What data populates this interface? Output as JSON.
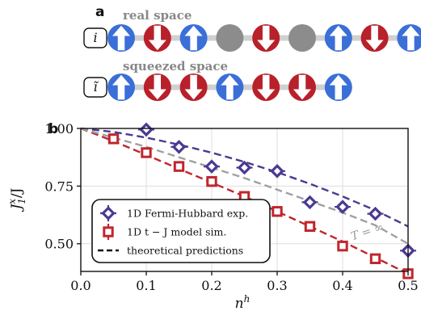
{
  "panel_a": {
    "letter": "a",
    "real_space": {
      "title": "real space",
      "index_label": "i",
      "sites": [
        "up",
        "down",
        "up",
        "hole",
        "down",
        "hole",
        "up",
        "down",
        "up"
      ]
    },
    "squeezed_space": {
      "title": "squeezed space",
      "index_label": "ĩ",
      "sites": [
        "up",
        "down",
        "down",
        "up",
        "down",
        "down",
        "up"
      ]
    },
    "colors": {
      "up": "#3b6fd8",
      "down": "#b8202a",
      "hole": "#8c8c8c",
      "bond": "#d0d0d0"
    }
  },
  "chart_data": {
    "type": "line",
    "panel_letter": "b",
    "xlabel": "n",
    "xlabel_sup": "h",
    "ylabel": "J",
    "ylabel_sup": "x",
    "ylabel_sub": "1",
    "ylabel_tail": "/J",
    "xlim": [
      0.0,
      0.5
    ],
    "ylim": [
      0.38,
      1.0
    ],
    "xticks": [
      0.0,
      0.1,
      0.2,
      0.3,
      0.4,
      0.5
    ],
    "xtick_labels": [
      "0.0",
      "0.1",
      "0.2",
      "0.3",
      "0.4",
      "0.5"
    ],
    "yticks": [
      0.5,
      0.75,
      1.0
    ],
    "ytick_labels": [
      "0.50",
      "0.75",
      "1.00"
    ],
    "grid": true,
    "annotation": "T = ∞",
    "series": [
      {
        "name": "1D Fermi-Hubbard exp.",
        "marker": "diamond",
        "color": "#4b3a91",
        "x": [
          0.1,
          0.15,
          0.2,
          0.25,
          0.3,
          0.35,
          0.4,
          0.45,
          0.5
        ],
        "y": [
          0.995,
          0.92,
          0.835,
          0.83,
          0.815,
          0.68,
          0.66,
          0.63,
          0.47
        ],
        "yerr": [
          0.02,
          0.015,
          0.015,
          0.012,
          0.015,
          0.012,
          0.012,
          0.015,
          0.015
        ]
      },
      {
        "name": "1D t − J model sim.",
        "marker": "square",
        "color": "#c0262d",
        "x": [
          0.05,
          0.1,
          0.15,
          0.2,
          0.25,
          0.3,
          0.35,
          0.4,
          0.45,
          0.5
        ],
        "y": [
          0.955,
          0.895,
          0.835,
          0.77,
          0.705,
          0.64,
          0.575,
          0.49,
          0.435,
          0.37
        ]
      }
    ],
    "curves": [
      {
        "color": "#4b3a91",
        "x": [
          0.0,
          0.05,
          0.1,
          0.15,
          0.2,
          0.25,
          0.3,
          0.35,
          0.4,
          0.45,
          0.5
        ],
        "y": [
          1.0,
          0.985,
          0.96,
          0.93,
          0.895,
          0.855,
          0.81,
          0.76,
          0.705,
          0.645,
          0.575
        ]
      },
      {
        "color": "#c0262d",
        "x": [
          0.0,
          0.05,
          0.1,
          0.15,
          0.2,
          0.25,
          0.3,
          0.35,
          0.4,
          0.45,
          0.5
        ],
        "y": [
          1.0,
          0.945,
          0.885,
          0.825,
          0.765,
          0.705,
          0.64,
          0.575,
          0.51,
          0.44,
          0.37
        ]
      },
      {
        "color": "#a0a0a0",
        "x": [
          0.0,
          0.05,
          0.1,
          0.15,
          0.2,
          0.25,
          0.3,
          0.35,
          0.4,
          0.45,
          0.5
        ],
        "y": [
          1.0,
          0.96,
          0.92,
          0.875,
          0.83,
          0.785,
          0.735,
          0.685,
          0.635,
          0.58,
          0.5
        ]
      }
    ],
    "legend": {
      "placement": "lower-left",
      "entries": [
        {
          "label": "1D Fermi-Hubbard exp.",
          "marker": "diamond",
          "color": "#4b3a91"
        },
        {
          "label": "1D t − J model sim.",
          "marker": "square",
          "color": "#c0262d"
        },
        {
          "label": "theoretical predictions",
          "marker": "dashed-line",
          "color": "#111111"
        }
      ]
    }
  }
}
